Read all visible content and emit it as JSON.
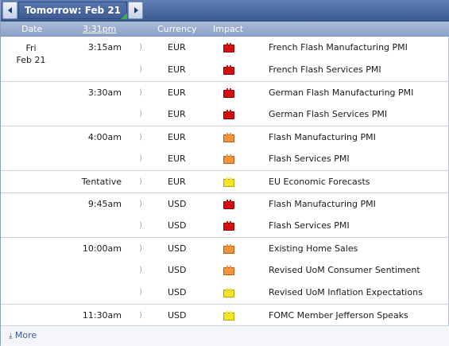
{
  "nav": {
    "label": "Tomorrow: Feb 21",
    "prev_icon": "left-arrow-icon",
    "next_icon": "right-arrow-icon"
  },
  "columns": {
    "date": "Date",
    "time": "3:31pm",
    "currency": "Currency",
    "impact": "Impact"
  },
  "date": {
    "weekday": "Fri",
    "day": "Feb 21"
  },
  "impact_colors": {
    "high": "#d21010",
    "medium": "#f3943d",
    "low": "#f6e12b"
  },
  "events": [
    {
      "time": "3:15am",
      "currency": "EUR",
      "impact": "high",
      "name": "French Flash Manufacturing PMI"
    },
    {
      "time": "",
      "currency": "EUR",
      "impact": "high",
      "name": "French Flash Services PMI"
    },
    {
      "time": "3:30am",
      "currency": "EUR",
      "impact": "high",
      "name": "German Flash Manufacturing PMI"
    },
    {
      "time": "",
      "currency": "EUR",
      "impact": "high",
      "name": "German Flash Services PMI"
    },
    {
      "time": "4:00am",
      "currency": "EUR",
      "impact": "medium",
      "name": "Flash Manufacturing PMI"
    },
    {
      "time": "",
      "currency": "EUR",
      "impact": "medium",
      "name": "Flash Services PMI"
    },
    {
      "time": "Tentative",
      "currency": "EUR",
      "impact": "low",
      "name": "EU Economic Forecasts"
    },
    {
      "time": "9:45am",
      "currency": "USD",
      "impact": "high",
      "name": "Flash Manufacturing PMI"
    },
    {
      "time": "",
      "currency": "USD",
      "impact": "high",
      "name": "Flash Services PMI"
    },
    {
      "time": "10:00am",
      "currency": "USD",
      "impact": "medium",
      "name": "Existing Home Sales"
    },
    {
      "time": "",
      "currency": "USD",
      "impact": "medium",
      "name": "Revised UoM Consumer Sentiment"
    },
    {
      "time": "",
      "currency": "USD",
      "impact": "low",
      "name": "Revised UoM Inflation Expectations"
    },
    {
      "time": "11:30am",
      "currency": "USD",
      "impact": "low",
      "name": "FOMC Member Jefferson Speaks"
    }
  ],
  "footer": {
    "more_label": "More",
    "more_icon": "download-arrow-icon"
  }
}
